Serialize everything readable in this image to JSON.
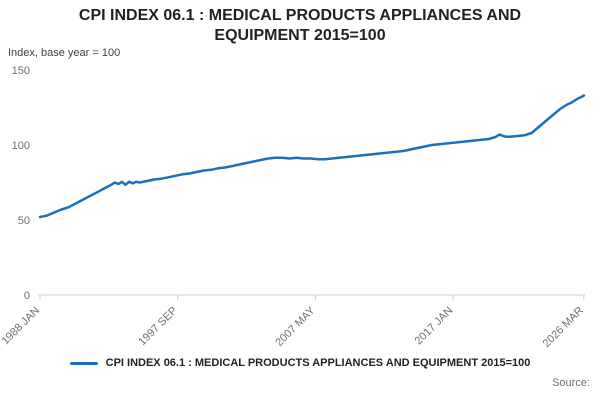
{
  "title": "CPI INDEX 06.1 : MEDICAL PRODUCTS APPLIANCES AND EQUIPMENT 2015=100",
  "y_axis_unit": "Index, base year = 100",
  "source_label": "Source:",
  "legend": {
    "label": "CPI INDEX 06.1 : MEDICAL PRODUCTS APPLIANCES AND EQUIPMENT 2015=100"
  },
  "colors": {
    "line": "#1d70b8",
    "axis": "#cfcfcf",
    "muted_text": "#707070",
    "title_text": "#222222"
  },
  "chart_data": {
    "type": "line",
    "title": "CPI INDEX 06.1 : MEDICAL PRODUCTS APPLIANCES AND EQUIPMENT 2015=100",
    "xlabel": "",
    "ylabel": "Index, base year = 100",
    "ylim": [
      0,
      150
    ],
    "y_ticks": [
      0,
      50,
      100,
      150
    ],
    "x_range": [
      1988.0,
      2026.25
    ],
    "x_ticks": [
      {
        "value": 1988.0,
        "label": "1988 JAN"
      },
      {
        "value": 1997.667,
        "label": "1997 SEP"
      },
      {
        "value": 2007.333,
        "label": "2007 MAY"
      },
      {
        "value": 2017.0,
        "label": "2017 JAN"
      },
      {
        "value": 2026.167,
        "label": "2026 MAR"
      }
    ],
    "grid": false,
    "legend_position": "bottom",
    "series": [
      {
        "name": "CPI INDEX 06.1 : MEDICAL PRODUCTS APPLIANCES AND EQUIPMENT 2015=100",
        "x": [
          1988.0,
          1988.25,
          1988.5,
          1988.75,
          1989.0,
          1989.5,
          1990.0,
          1990.5,
          1991.0,
          1991.5,
          1992.0,
          1992.5,
          1993.0,
          1993.25,
          1993.5,
          1993.75,
          1994.0,
          1994.25,
          1994.5,
          1994.75,
          1995.0,
          1995.5,
          1996.0,
          1996.5,
          1997.0,
          1997.5,
          1998.0,
          1998.5,
          1999.0,
          1999.5,
          2000.0,
          2000.5,
          2001.0,
          2001.5,
          2002.0,
          2002.5,
          2003.0,
          2003.5,
          2004.0,
          2004.5,
          2005.0,
          2005.5,
          2006.0,
          2006.5,
          2007.0,
          2007.5,
          2008.0,
          2008.5,
          2009.0,
          2009.5,
          2010.0,
          2010.5,
          2011.0,
          2011.5,
          2012.0,
          2012.5,
          2013.0,
          2013.5,
          2014.0,
          2014.5,
          2015.0,
          2015.5,
          2016.0,
          2016.5,
          2017.0,
          2017.5,
          2018.0,
          2018.5,
          2019.0,
          2019.5,
          2020.0,
          2020.25,
          2020.5,
          2020.75,
          2021.0,
          2021.5,
          2022.0,
          2022.5,
          2023.0,
          2023.5,
          2024.0,
          2024.5,
          2025.0,
          2025.25,
          2025.5,
          2025.75,
          2026.0,
          2026.17
        ],
        "y": [
          52,
          52.5,
          53,
          54,
          55,
          57,
          58.5,
          61,
          63.5,
          66,
          68.5,
          71,
          73.5,
          75,
          74,
          75.5,
          73.5,
          75.5,
          74.5,
          75.5,
          75,
          76,
          77,
          77.5,
          78.5,
          79.5,
          80.5,
          81,
          82,
          83,
          83.5,
          84.5,
          85,
          86,
          87,
          88,
          89,
          90,
          91,
          91.5,
          91.5,
          91,
          91.5,
          91,
          91,
          90.5,
          90.5,
          91,
          91.5,
          92,
          92.5,
          93,
          93.5,
          94,
          94.5,
          95,
          95.5,
          96,
          97,
          98,
          99,
          100,
          100.5,
          101,
          101.5,
          102,
          102.5,
          103,
          103.5,
          104,
          105.5,
          107,
          106,
          105.5,
          105.5,
          106,
          106.5,
          108,
          112,
          116,
          120,
          124,
          127,
          128,
          129.5,
          131,
          132,
          133
        ]
      }
    ]
  }
}
